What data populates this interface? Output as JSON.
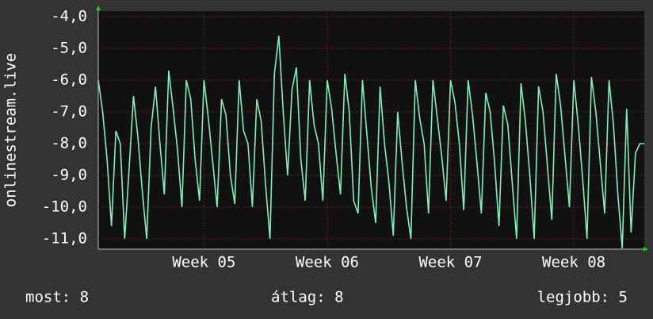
{
  "chart_data": {
    "type": "line",
    "y_label": "onlinestream.live",
    "color": "#80f0b8",
    "values": [
      -6.0,
      -7.0,
      -8.5,
      -10.6,
      -7.6,
      -8.0,
      -11.0,
      -8.8,
      -6.5,
      -7.8,
      -9.5,
      -11.0,
      -7.5,
      -6.2,
      -8.0,
      -9.6,
      -5.7,
      -6.9,
      -8.2,
      -10.0,
      -6.0,
      -6.6,
      -8.5,
      -9.8,
      -6.0,
      -7.2,
      -8.6,
      -10.0,
      -6.6,
      -7.1,
      -9.0,
      -9.9,
      -6.0,
      -7.6,
      -8.0,
      -10.0,
      -6.6,
      -7.3,
      -9.3,
      -11.0,
      -5.8,
      -4.6,
      -7.0,
      -9.0,
      -6.3,
      -5.6,
      -8.5,
      -9.8,
      -6.0,
      -7.4,
      -8.0,
      -9.8,
      -6.0,
      -6.9,
      -8.3,
      -9.6,
      -5.8,
      -7.0,
      -9.8,
      -10.2,
      -6.0,
      -7.7,
      -9.4,
      -10.5,
      -6.2,
      -8.0,
      -9.2,
      -10.9,
      -7.0,
      -8.6,
      -10.0,
      -11.0,
      -6.0,
      -7.2,
      -8.0,
      -10.2,
      -6.0,
      -7.2,
      -8.4,
      -9.8,
      -6.0,
      -6.7,
      -8.0,
      -10.1,
      -6.0,
      -7.1,
      -8.6,
      -10.2,
      -6.4,
      -7.0,
      -8.6,
      -10.6,
      -6.8,
      -7.4,
      -9.2,
      -11.0,
      -6.1,
      -7.3,
      -9.0,
      -11.0,
      -6.2,
      -7.0,
      -8.7,
      -10.4,
      -5.8,
      -6.8,
      -8.4,
      -10.0,
      -6.0,
      -7.4,
      -9.1,
      -11.0,
      -5.9,
      -7.0,
      -8.6,
      -10.2,
      -6.0,
      -7.4,
      -9.6,
      -11.3,
      -6.9,
      -10.8,
      -8.3,
      -8.0,
      -8.0
    ],
    "xlim": [
      0,
      124
    ],
    "xticks": [
      {
        "value": 24,
        "label": "Week 05"
      },
      {
        "value": 52,
        "label": "Week 06"
      },
      {
        "value": 80,
        "label": "Week 07"
      },
      {
        "value": 108,
        "label": "Week 08"
      }
    ],
    "ylim": [
      -11.325,
      -3.825
    ],
    "yticks": [
      {
        "value": -11,
        "label": "-11,0"
      },
      {
        "value": -10,
        "label": "-10,0"
      },
      {
        "value": -9,
        "label": "-9,0"
      },
      {
        "value": -8,
        "label": "-8,0"
      },
      {
        "value": -7,
        "label": "-7,0"
      },
      {
        "value": -6,
        "label": "-6,0"
      },
      {
        "value": -5,
        "label": "-5,0"
      },
      {
        "value": -4,
        "label": "-4,0"
      }
    ],
    "grid": true,
    "footer": [
      "most: 8",
      "átlag: 8",
      "legjobb: 5"
    ]
  }
}
